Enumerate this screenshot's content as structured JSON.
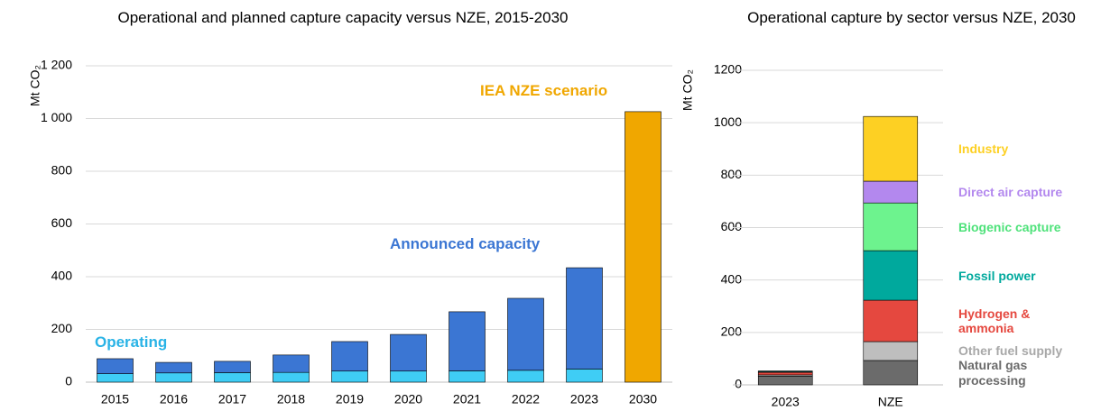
{
  "chart_data": [
    {
      "type": "stacked_bar",
      "title": "Operational and planned capture capacity versus NZE, 2015-2030",
      "y_label": "Mt CO₂",
      "categories": [
        "2015",
        "2016",
        "2017",
        "2018",
        "2019",
        "2020",
        "2021",
        "2022",
        "2023",
        "2030"
      ],
      "series": [
        {
          "name": "Operating",
          "color": "#3fcdf5",
          "label_color": "#29b3e6",
          "values": [
            32,
            35,
            36,
            37,
            42,
            42,
            43,
            45,
            50,
            null
          ]
        },
        {
          "name": "Announced capacity",
          "color": "#3b76d3",
          "values": [
            57,
            40,
            43,
            66,
            112,
            139,
            224,
            273,
            384,
            null
          ]
        },
        {
          "name": "IEA NZE scenario",
          "color": "#f0a700",
          "values": [
            null,
            null,
            null,
            null,
            null,
            null,
            null,
            null,
            null,
            1026
          ]
        }
      ],
      "ylim": [
        0,
        1200
      ],
      "yticks": [
        0,
        200,
        400,
        600,
        800,
        {
          "value": 1000,
          "label": "1 000"
        },
        {
          "value": 1200,
          "label": "1 200"
        }
      ],
      "grid": true
    },
    {
      "type": "stacked_bar",
      "title": "Operational capture by sector versus NZE, 2030",
      "y_label": "Mt CO₂",
      "categories": [
        "2023",
        "NZE"
      ],
      "series": [
        {
          "name": "Natural gas processing",
          "color": "#6b6b6b",
          "values": [
            33,
            93
          ]
        },
        {
          "name": "Other fuel supply",
          "color": "#bebebe",
          "label_color": "#a8a8a8",
          "values": [
            5,
            72
          ]
        },
        {
          "name": "Hydrogen & ammonia",
          "color": "#e5483f",
          "values": [
            10,
            158
          ]
        },
        {
          "name": "Fossil power",
          "color": "#00a99d",
          "values": [
            3,
            189
          ]
        },
        {
          "name": "Biogenic capture",
          "color": "#6df38e",
          "label_color": "#4ee27a",
          "values": [
            2,
            182
          ]
        },
        {
          "name": "Direct air capture",
          "color": "#b388ee",
          "values": [
            0,
            83
          ]
        },
        {
          "name": "Industry",
          "color": "#fdd023",
          "values": [
            0,
            247
          ]
        }
      ],
      "ylim": [
        0,
        1200
      ],
      "yticks": [
        0,
        200,
        400,
        600,
        800,
        1000,
        1200
      ],
      "grid": true
    }
  ]
}
